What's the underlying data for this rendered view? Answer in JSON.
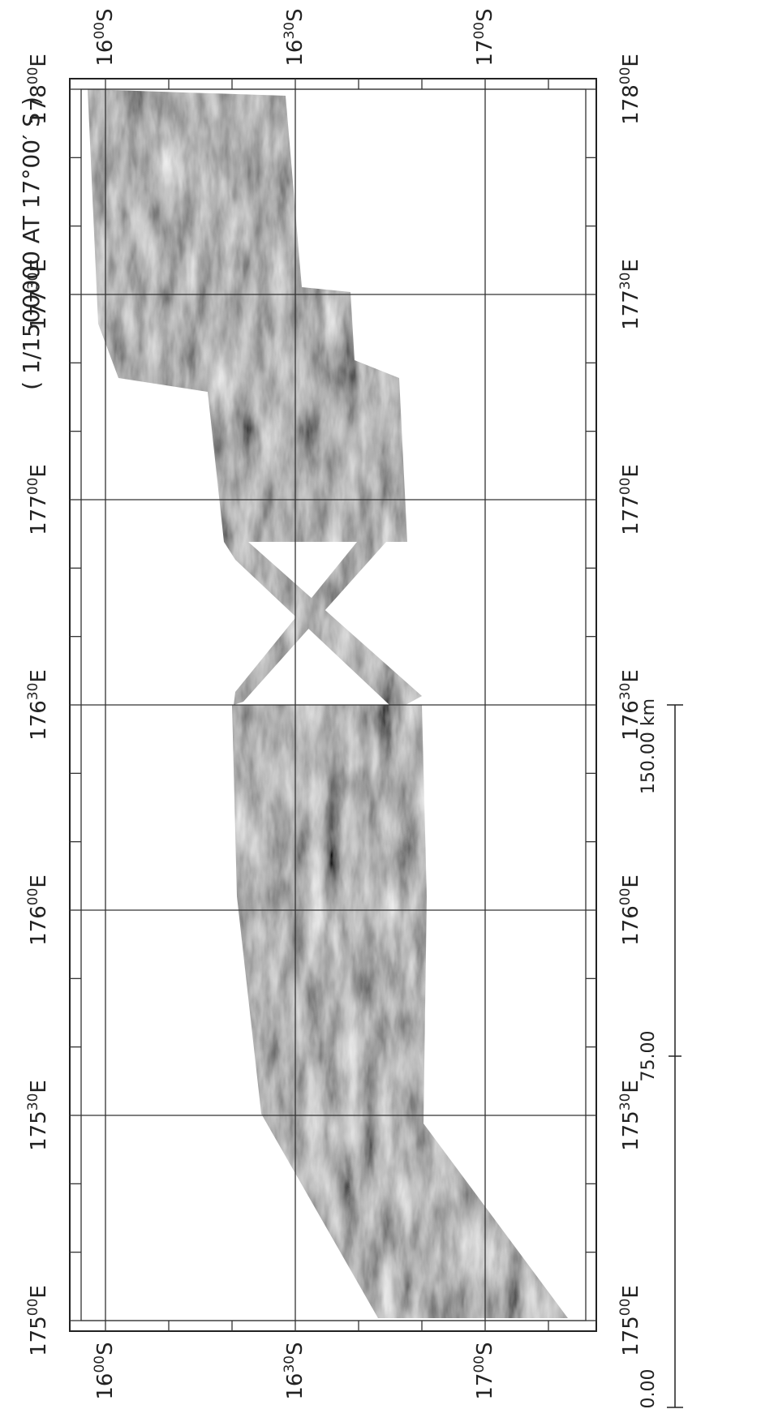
{
  "title": "( 1/1500000 AT 17°00′ S )",
  "longitudes": [
    {
      "deg": "178",
      "min": "00",
      "hemi": "E"
    },
    {
      "deg": "177",
      "min": "30",
      "hemi": "E"
    },
    {
      "deg": "177",
      "min": "00",
      "hemi": "E"
    },
    {
      "deg": "176",
      "min": "30",
      "hemi": "E"
    },
    {
      "deg": "176",
      "min": "00",
      "hemi": "E"
    },
    {
      "deg": "175",
      "min": "30",
      "hemi": "E"
    },
    {
      "deg": "175",
      "min": "00",
      "hemi": "E"
    }
  ],
  "latitudes": [
    {
      "deg": "16",
      "min": "00",
      "hemi": "S"
    },
    {
      "deg": "16",
      "min": "30",
      "hemi": "S"
    },
    {
      "deg": "17",
      "min": "00",
      "hemi": "S"
    }
  ],
  "scale_bar": [
    "0.00",
    "75.00",
    "150.00 km"
  ]
}
